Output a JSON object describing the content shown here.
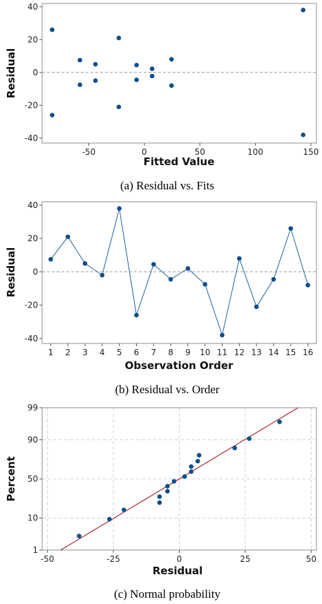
{
  "chart_data": [
    {
      "type": "scatter",
      "caption": "(a)  Residual  vs.  Fits",
      "xlabel": "Fitted Value",
      "ylabel": "Residual",
      "xlim": [
        -92,
        155
      ],
      "ylim": [
        -43,
        42
      ],
      "xticks": [
        -50,
        0,
        50,
        100,
        150
      ],
      "yticks": [
        -40,
        -20,
        0,
        20,
        40
      ],
      "reference_line": 0,
      "grid": false,
      "points": [
        {
          "x": -83,
          "y": 26
        },
        {
          "x": -83,
          "y": -26
        },
        {
          "x": -58,
          "y": 7.5
        },
        {
          "x": -58,
          "y": -7.5
        },
        {
          "x": -44,
          "y": 5
        },
        {
          "x": -44,
          "y": -5
        },
        {
          "x": -23,
          "y": 21
        },
        {
          "x": -23,
          "y": -21
        },
        {
          "x": -7,
          "y": 4.5
        },
        {
          "x": -7,
          "y": -4.5
        },
        {
          "x": 7,
          "y": 2.2
        },
        {
          "x": 7,
          "y": -2.2
        },
        {
          "x": 24.5,
          "y": 8
        },
        {
          "x": 24.5,
          "y": -8
        },
        {
          "x": 143,
          "y": 38
        },
        {
          "x": 143,
          "y": -38
        }
      ]
    },
    {
      "type": "line",
      "caption": "(b)  Residual  vs.  Order",
      "xlabel": "Observation Order",
      "ylabel": "Residual",
      "xlim": [
        0.5,
        16.5
      ],
      "ylim": [
        -43,
        42
      ],
      "xticks": [
        1,
        2,
        3,
        4,
        5,
        6,
        7,
        8,
        9,
        10,
        11,
        12,
        13,
        14,
        15,
        16
      ],
      "yticks": [
        -40,
        -20,
        0,
        20,
        40
      ],
      "reference_line": 0,
      "grid": false,
      "x": [
        1,
        2,
        3,
        4,
        5,
        6,
        7,
        8,
        9,
        10,
        11,
        12,
        13,
        14,
        15,
        16
      ],
      "y": [
        7.5,
        21,
        5,
        -2,
        38,
        -26,
        4.5,
        -4.5,
        2,
        -7.5,
        -38,
        8,
        -21,
        -4.5,
        26,
        -8
      ]
    },
    {
      "type": "scatter",
      "caption": "(c)  Normal  probability",
      "xlabel": "Residual",
      "ylabel": "Percent",
      "scale_y": "normal-probability",
      "xlim": [
        -52,
        52
      ],
      "ylim": [
        1,
        99
      ],
      "xticks": [
        -50,
        -25,
        0,
        25,
        50
      ],
      "yticks": [
        1,
        10,
        50,
        90,
        99
      ],
      "grid": true,
      "fit_line": {
        "x": [
          -45,
          45
        ],
        "percent": [
          1,
          99
        ]
      },
      "points": [
        {
          "x": -38,
          "y": 3.1
        },
        {
          "x": -26.5,
          "y": 9.4
        },
        {
          "x": -21,
          "y": 15.6
        },
        {
          "x": -7.5,
          "y": 21.9
        },
        {
          "x": -7.5,
          "y": 28.1
        },
        {
          "x": -4.5,
          "y": 34.4
        },
        {
          "x": -4.5,
          "y": 40.6
        },
        {
          "x": -2,
          "y": 46.9
        },
        {
          "x": 2,
          "y": 53.1
        },
        {
          "x": 4.5,
          "y": 59.4
        },
        {
          "x": 4.5,
          "y": 65.6
        },
        {
          "x": 7,
          "y": 71.9
        },
        {
          "x": 7.5,
          "y": 78.1
        },
        {
          "x": 21,
          "y": 84.4
        },
        {
          "x": 26.5,
          "y": 90.6
        },
        {
          "x": 38,
          "y": 96.9
        }
      ]
    }
  ]
}
